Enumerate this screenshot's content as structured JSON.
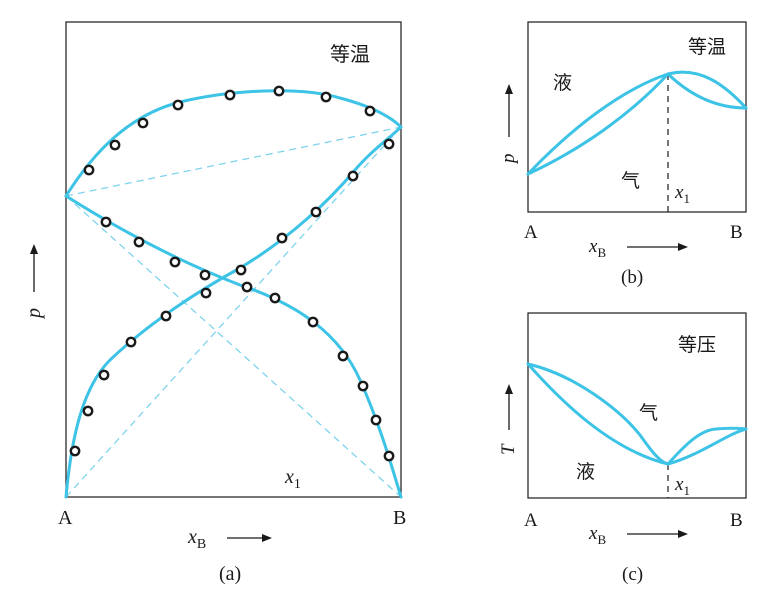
{
  "panel_a": {
    "condition": "等温",
    "y_axis": "p",
    "x_axis": "x",
    "x_axis_sub": "B",
    "left_end": "A",
    "right_end": "B",
    "point_label": "x",
    "point_label_sub": "1",
    "caption": "(a)"
  },
  "panel_b": {
    "condition": "等温",
    "y_axis": "p",
    "x_axis": "x",
    "x_axis_sub": "B",
    "left_end": "A",
    "right_end": "B",
    "liquid": "液",
    "vapor": "气",
    "point_label": "x",
    "point_label_sub": "1",
    "caption": "(b)"
  },
  "panel_c": {
    "condition": "等压",
    "y_axis": "T",
    "x_axis": "x",
    "x_axis_sub": "B",
    "left_end": "A",
    "right_end": "B",
    "liquid": "液",
    "vapor": "气",
    "point_label": "x",
    "point_label_sub": "1",
    "caption": "(c)"
  },
  "colors": {
    "curve": "#3cc3e6",
    "dash": "#7ed3ee",
    "ink": "#1a1a1a"
  }
}
